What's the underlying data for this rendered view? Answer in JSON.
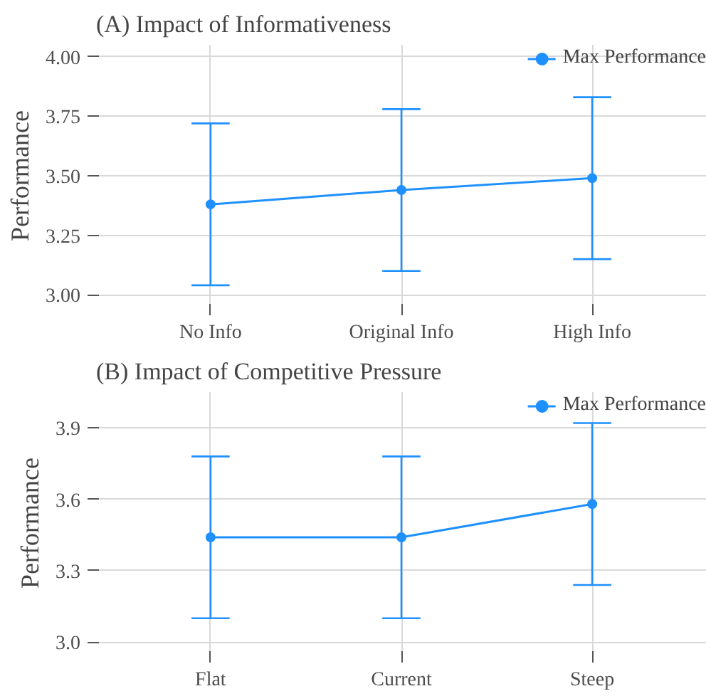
{
  "chart_data": [
    {
      "type": "line",
      "title": "(A) Impact of Informativeness",
      "ylabel": "Performance",
      "categories": [
        "No Info",
        "Original Info",
        "High Info"
      ],
      "series": [
        {
          "name": "Max Performance",
          "color": "#1e90ff",
          "values": [
            3.38,
            3.44,
            3.49
          ],
          "errors": [
            [
              3.04,
              3.72
            ],
            [
              3.1,
              3.78
            ],
            [
              3.15,
              3.83
            ]
          ]
        }
      ],
      "ylim": [
        2.95,
        4.05
      ],
      "yticks": [
        {
          "value": 3.0,
          "label": "3.00"
        },
        {
          "value": 3.25,
          "label": "3.25"
        },
        {
          "value": 3.5,
          "label": "3.50"
        },
        {
          "value": 3.75,
          "label": "3.75"
        },
        {
          "value": 4.0,
          "label": "4.00"
        }
      ],
      "grid": true,
      "legend": "top right",
      "marker": "circle",
      "line_style": "solid"
    },
    {
      "type": "line",
      "title": "(B) Impact of Competitive Pressure",
      "ylabel": "Performance",
      "categories": [
        "Flat",
        "Current",
        "Steep"
      ],
      "series": [
        {
          "name": "Max Performance",
          "color": "#1e90ff",
          "values": [
            3.44,
            3.44,
            3.58
          ],
          "errors": [
            [
              3.1,
              3.78
            ],
            [
              3.1,
              3.78
            ],
            [
              3.24,
              3.92
            ]
          ]
        }
      ],
      "ylim": [
        2.95,
        4.05
      ],
      "yticks": [
        {
          "value": 3.0,
          "label": "3.0"
        },
        {
          "value": 3.3,
          "label": "3.3"
        },
        {
          "value": 3.6,
          "label": "3.6"
        },
        {
          "value": 3.9,
          "label": "3.9"
        }
      ],
      "grid": true,
      "legend": "top right",
      "marker": "circle",
      "line_style": "solid"
    }
  ]
}
